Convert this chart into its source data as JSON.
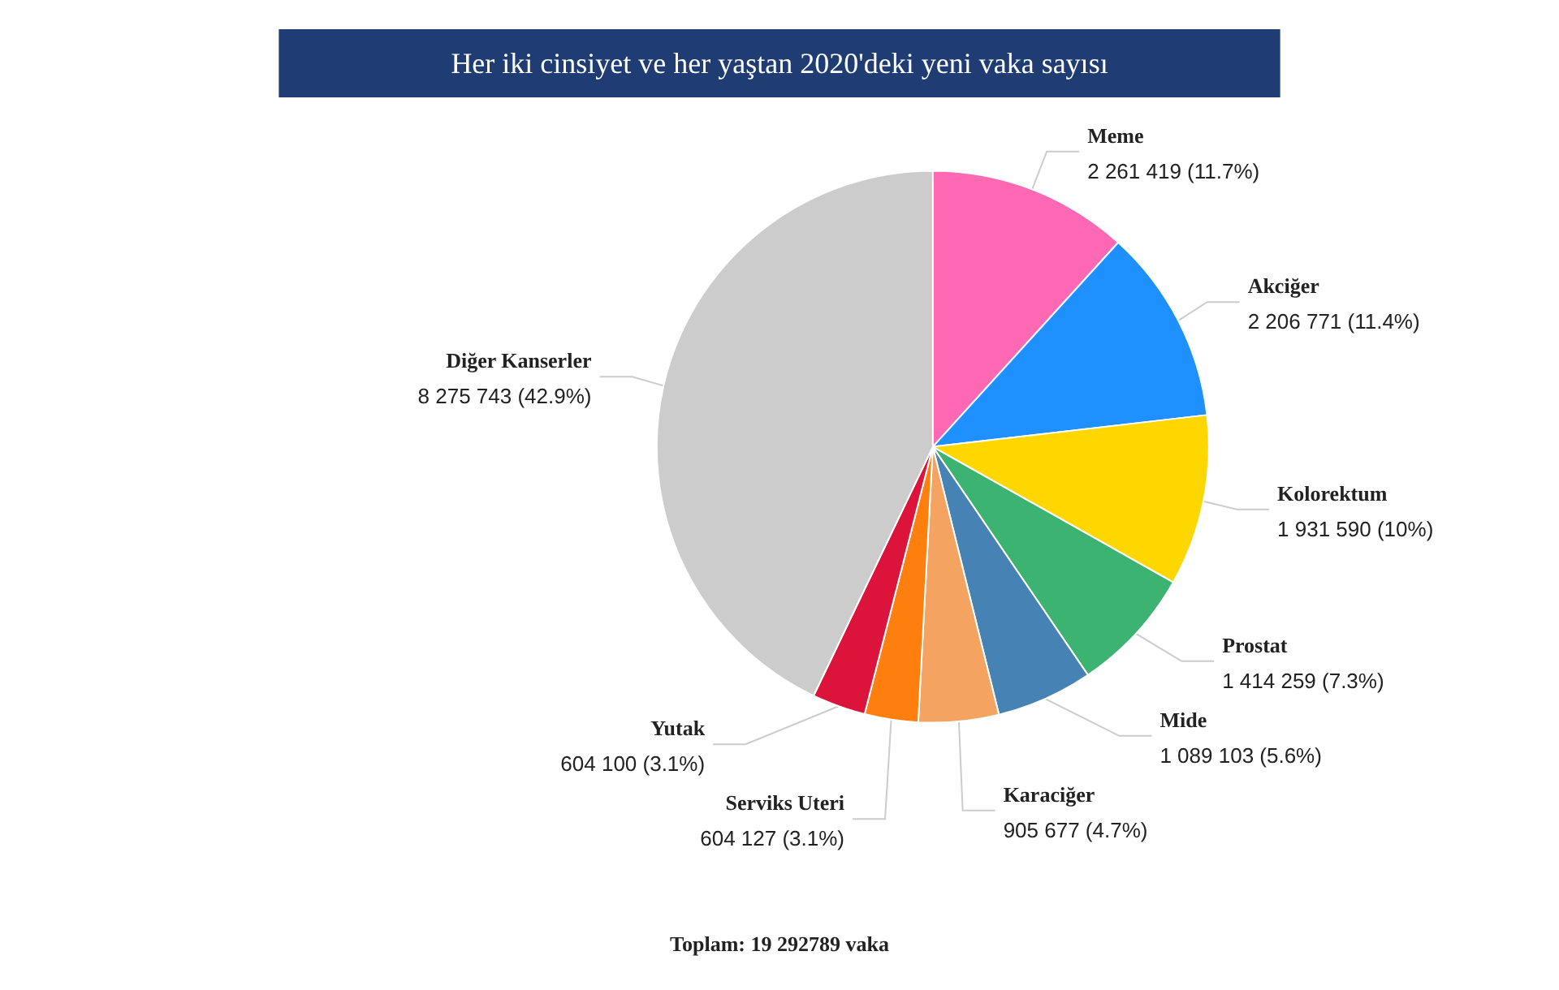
{
  "chart_data": {
    "type": "pie",
    "title": "Her iki cinsiyet ve her yaştan 2020'deki yeni vaka sayısı",
    "categories": [
      "Meme",
      "Akciğer",
      "Kolorektum",
      "Prostat",
      "Mide",
      "Karaciğer",
      "Serviks Uteri",
      "Yutak",
      "Diğer Kanserler"
    ],
    "values": [
      2261419,
      2206771,
      1931590,
      1414259,
      1089103,
      905677,
      604127,
      604100,
      8275743
    ],
    "value_labels": [
      "2 261 419 (11.7%)",
      "2 206 771 (11.4%)",
      "1 931 590 (10%)",
      "1 414 259 (7.3%)",
      "1 089 103 (5.6%)",
      "905 677 (4.7%)",
      "604 127 (3.1%)",
      "604 100 (3.1%)",
      "8 275 743 (42.9%)"
    ],
    "colors": [
      "#ff69b4",
      "#1e90ff",
      "#ffd700",
      "#3cb371",
      "#4682b4",
      "#f4a460",
      "#ff7f0e",
      "#dc143c",
      "#cccccc"
    ],
    "legend": false,
    "annotations": [
      "Toplam: 19 292789 vaka"
    ]
  }
}
